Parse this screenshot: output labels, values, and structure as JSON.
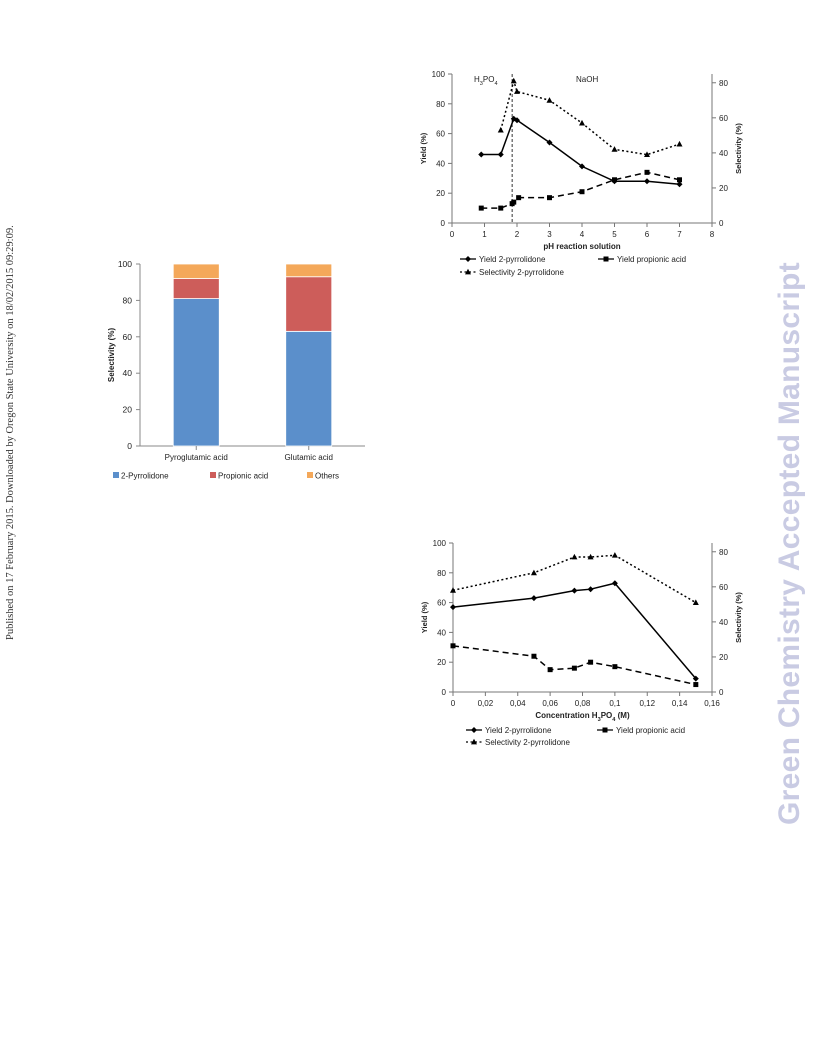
{
  "page": {
    "side_note": "Published on 17 February 2015. Downloaded by Oregon State University on 18/02/2015 09:29:09.",
    "watermark": "Green Chemistry Accepted Manuscript"
  },
  "chart_data": [
    {
      "type": "bar",
      "stacked": true,
      "categories": [
        "Pyroglutamic acid",
        "Glutamic acid"
      ],
      "series": [
        {
          "name": "2-Pyrrolidone",
          "color": "#5b8fcb",
          "values": [
            81,
            63
          ]
        },
        {
          "name": "Propionic acid",
          "color": "#cd5d5a",
          "values": [
            11,
            30
          ]
        },
        {
          "name": "Others",
          "color": "#f4a85a",
          "values": [
            8,
            7
          ]
        }
      ],
      "ylabel": "Selectivity (%)",
      "ylim": [
        0,
        100
      ],
      "yticks": [
        "0",
        "20",
        "40",
        "60",
        "80",
        "100"
      ],
      "legend": "bottom"
    },
    {
      "type": "line",
      "xlabel": "pH reaction solution",
      "ylabel": "Yield (%)",
      "y2label": "Selectivity (%)",
      "xlim": [
        0,
        8
      ],
      "ylim": [
        0,
        100
      ],
      "y2lim": [
        0,
        85
      ],
      "xticks": [
        "0",
        "1",
        "2",
        "3",
        "4",
        "5",
        "6",
        "7",
        "8"
      ],
      "yticks": [
        "0",
        "20",
        "40",
        "60",
        "80",
        "100"
      ],
      "y2ticks": [
        "0",
        "20",
        "40",
        "60",
        "80"
      ],
      "region_labels": {
        "left": "H3PO4",
        "right": "NaOH"
      },
      "divider_x": 1.85,
      "series": [
        {
          "name": "Yield 2-pyrrolidone",
          "axis": "left",
          "style": "solid",
          "x": [
            0.9,
            1.5,
            1.9,
            2.0,
            3.0,
            4.0,
            5.0,
            6.0,
            7.0
          ],
          "y": [
            46,
            46,
            70,
            69,
            54,
            38,
            28,
            28,
            26
          ]
        },
        {
          "name": "Yield propionic acid",
          "axis": "left",
          "style": "dashed",
          "x": [
            0.9,
            1.5,
            1.85,
            1.9,
            2.05,
            3.0,
            4.0,
            5.0,
            6.0,
            7.0
          ],
          "y": [
            10,
            10,
            13,
            14,
            17,
            17,
            21,
            29,
            34,
            29
          ]
        },
        {
          "name": "Selectivity 2-pyrrolidone",
          "axis": "right",
          "style": "dotted",
          "x": [
            1.5,
            1.9,
            2.0,
            3.0,
            4.0,
            5.0,
            6.0,
            7.0
          ],
          "y": [
            53,
            81,
            75,
            70,
            57,
            42,
            39,
            45
          ]
        }
      ],
      "legend": "bottom"
    },
    {
      "type": "line",
      "xlabel": "Concentration H3PO4 (M)",
      "ylabel": "Yield (%)",
      "y2label": "Selectivity (%)",
      "xlim": [
        0,
        0.16
      ],
      "ylim": [
        0,
        100
      ],
      "y2lim": [
        0,
        85
      ],
      "xticks": [
        "0",
        "0,02",
        "0,04",
        "0,06",
        "0,08",
        "0,1",
        "0,12",
        "0,14",
        "0,16"
      ],
      "yticks": [
        "0",
        "20",
        "40",
        "60",
        "80",
        "100"
      ],
      "y2ticks": [
        "0",
        "20",
        "40",
        "60",
        "80"
      ],
      "series": [
        {
          "name": "Yield 2-pyrrolidone",
          "axis": "left",
          "style": "solid",
          "x": [
            0,
            0.05,
            0.075,
            0.085,
            0.1,
            0.15
          ],
          "y": [
            57,
            63,
            68,
            69,
            73,
            9
          ]
        },
        {
          "name": "Yield propionic acid",
          "axis": "left",
          "style": "dashed",
          "x": [
            0,
            0.05,
            0.06,
            0.075,
            0.085,
            0.1,
            0.15
          ],
          "y": [
            31,
            24,
            15,
            16,
            20,
            17,
            5
          ]
        },
        {
          "name": "Selectivity 2-pyrrolidone",
          "axis": "right",
          "style": "dotted",
          "x": [
            0,
            0.05,
            0.075,
            0.085,
            0.1,
            0.15
          ],
          "y": [
            58,
            68,
            77,
            77,
            78,
            51
          ]
        }
      ],
      "legend": "bottom"
    }
  ]
}
